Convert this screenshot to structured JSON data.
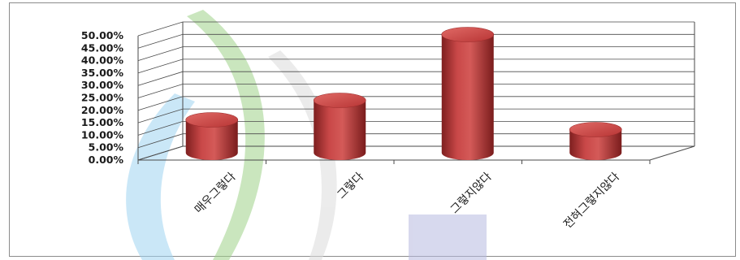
{
  "chart_data": {
    "type": "bar",
    "style": "3d-cylinder",
    "categories": [
      "매우그렇다",
      "그렇다",
      "그렇지않다",
      "전혀그렇지않다"
    ],
    "values": [
      13.5,
      21.5,
      48.5,
      9.5
    ],
    "unit": "%",
    "ylim": [
      0,
      50
    ],
    "yticks": [
      "0.00%",
      "5.00%",
      "10.00%",
      "15.00%",
      "20.00%",
      "25.00%",
      "30.00%",
      "35.00%",
      "40.00%",
      "45.00%",
      "50.00%"
    ],
    "grid": true,
    "legend": "none",
    "bar_color": "#c0393b"
  }
}
